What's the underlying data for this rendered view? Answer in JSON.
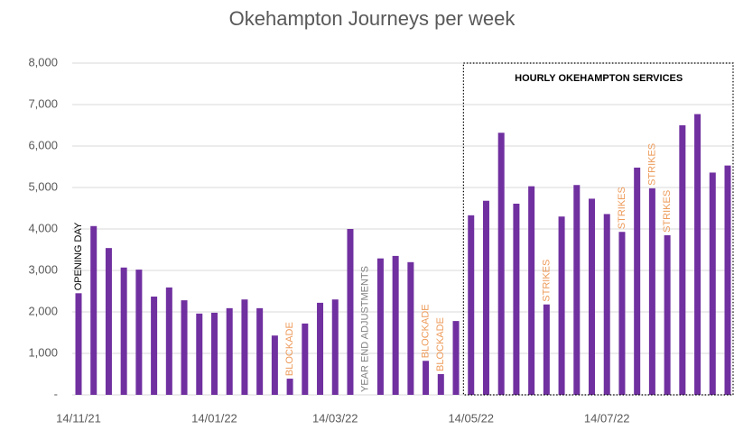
{
  "chart_data": {
    "type": "bar",
    "title": "Okehampton Journeys per week",
    "color": "#7030a0",
    "categories": [
      "14/11/21",
      null,
      null,
      null,
      null,
      null,
      null,
      null,
      null,
      "14/01/22",
      null,
      null,
      null,
      null,
      null,
      null,
      null,
      "14/03/22",
      null,
      null,
      null,
      null,
      null,
      null,
      null,
      null,
      "14/05/22",
      null,
      null,
      null,
      null,
      null,
      null,
      null,
      null,
      "14/07/22",
      null,
      null,
      null,
      null,
      null,
      null,
      null,
      null
    ],
    "values": [
      2450,
      4070,
      3540,
      3070,
      3020,
      2370,
      2590,
      2280,
      1960,
      1980,
      2090,
      2300,
      2090,
      1430,
      390,
      1720,
      2220,
      2300,
      4000,
      null,
      3290,
      3350,
      3200,
      820,
      500,
      1780,
      4330,
      4680,
      6320,
      4610,
      5030,
      2180,
      4300,
      5060,
      4730,
      4360,
      3930,
      5480,
      4980,
      3850,
      6500,
      6770,
      5360,
      5530
    ],
    "ylim": [
      0,
      8000
    ],
    "yticks": [
      {
        "value": 0,
        "label": "-"
      },
      {
        "value": 1000,
        "label": "1,000"
      },
      {
        "value": 2000,
        "label": "2,000"
      },
      {
        "value": 3000,
        "label": "3,000"
      },
      {
        "value": 4000,
        "label": "4,000"
      },
      {
        "value": 5000,
        "label": "5,000"
      },
      {
        "value": 6000,
        "label": "6,000"
      },
      {
        "value": 7000,
        "label": "7,000"
      },
      {
        "value": 8000,
        "label": "8,000"
      }
    ],
    "grid": true,
    "annotations": [
      {
        "text": "OPENING DAY",
        "at": 0,
        "color": "#000000"
      },
      {
        "text": "BLOCKADE",
        "at": 14,
        "color": "#ed9b5a"
      },
      {
        "text": "YEAR END ADJUSTMENTS",
        "at": 19,
        "color": "#7f7f7f"
      },
      {
        "text": "BLOCKADE",
        "at": 23,
        "color": "#ed9b5a"
      },
      {
        "text": "BLOCKADE",
        "at": 24,
        "color": "#ed9b5a"
      },
      {
        "text": "STRIKES",
        "at": 31,
        "color": "#ed9b5a"
      },
      {
        "text": "STRIKES",
        "at": 36,
        "color": "#ed9b5a"
      },
      {
        "text": "STRIKES",
        "at": 38,
        "color": "#ed9b5a"
      },
      {
        "text": "STRIKES",
        "at": 39,
        "color": "#ed9b5a"
      }
    ],
    "region": {
      "label": "HOURLY OKEHAMPTON SERVICES",
      "from": 26
    }
  }
}
